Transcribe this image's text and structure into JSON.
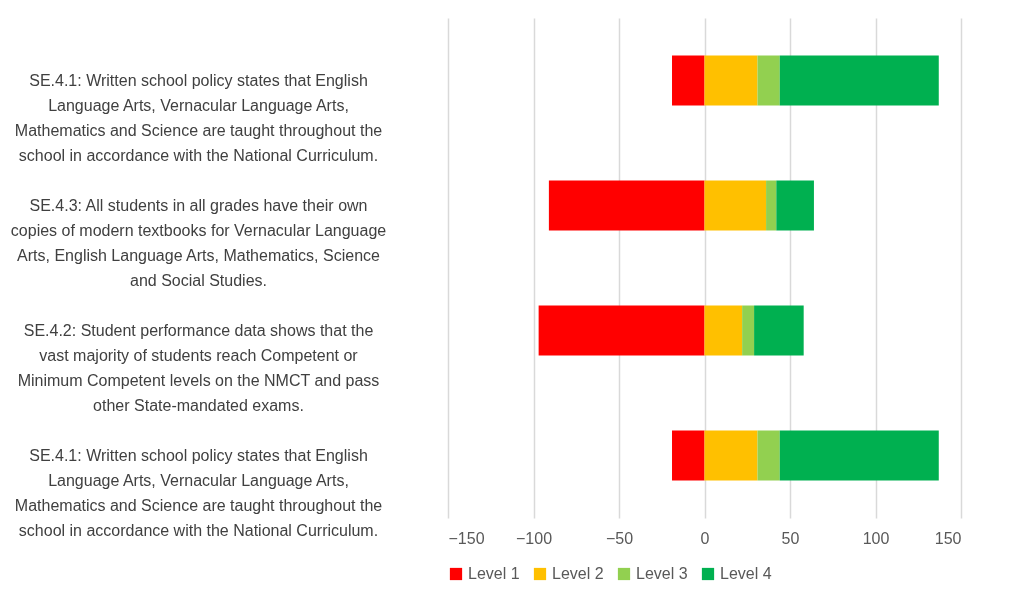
{
  "chart_data": {
    "type": "bar",
    "orientation": "horizontal",
    "stacked": true,
    "categories": [
      "SE.4.1: Written school policy states that English Language Arts, Vernacular Language Arts, Mathematics and Science are taught throughout the school in accordance with the National Curriculum.",
      "SE.4.3: All students in all grades have their own copies of modern textbooks for Vernacular Language Arts, English Language Arts, Mathematics, Science and Social Studies.",
      "SE.4.2: Student performance data shows that the vast majority of students reach Competent or Minimum Competent levels on the NMCT and pass other State-mandated exams.",
      "SE.4.1: Written school policy states that English Language Arts, Vernacular Language Arts, Mathematics and Science are taught throughout the school in accordance with the National Curriculum."
    ],
    "series": [
      {
        "name": "Level 1",
        "color": "#ff0000",
        "values": [
          -19,
          -91,
          -97,
          -19
        ]
      },
      {
        "name": "Level 2",
        "color": "#ffc000",
        "values": [
          31,
          36,
          22,
          31
        ]
      },
      {
        "name": "Level 3",
        "color": "#92d050",
        "values": [
          13,
          6,
          7,
          13
        ]
      },
      {
        "name": "Level 4",
        "color": "#00b050",
        "values": [
          93,
          22,
          29,
          93
        ]
      }
    ],
    "xlim": [
      -150,
      150
    ],
    "xticks": [
      -150,
      -100,
      -50,
      0,
      50,
      100,
      150
    ],
    "grid": "x",
    "legend": "bottom"
  }
}
